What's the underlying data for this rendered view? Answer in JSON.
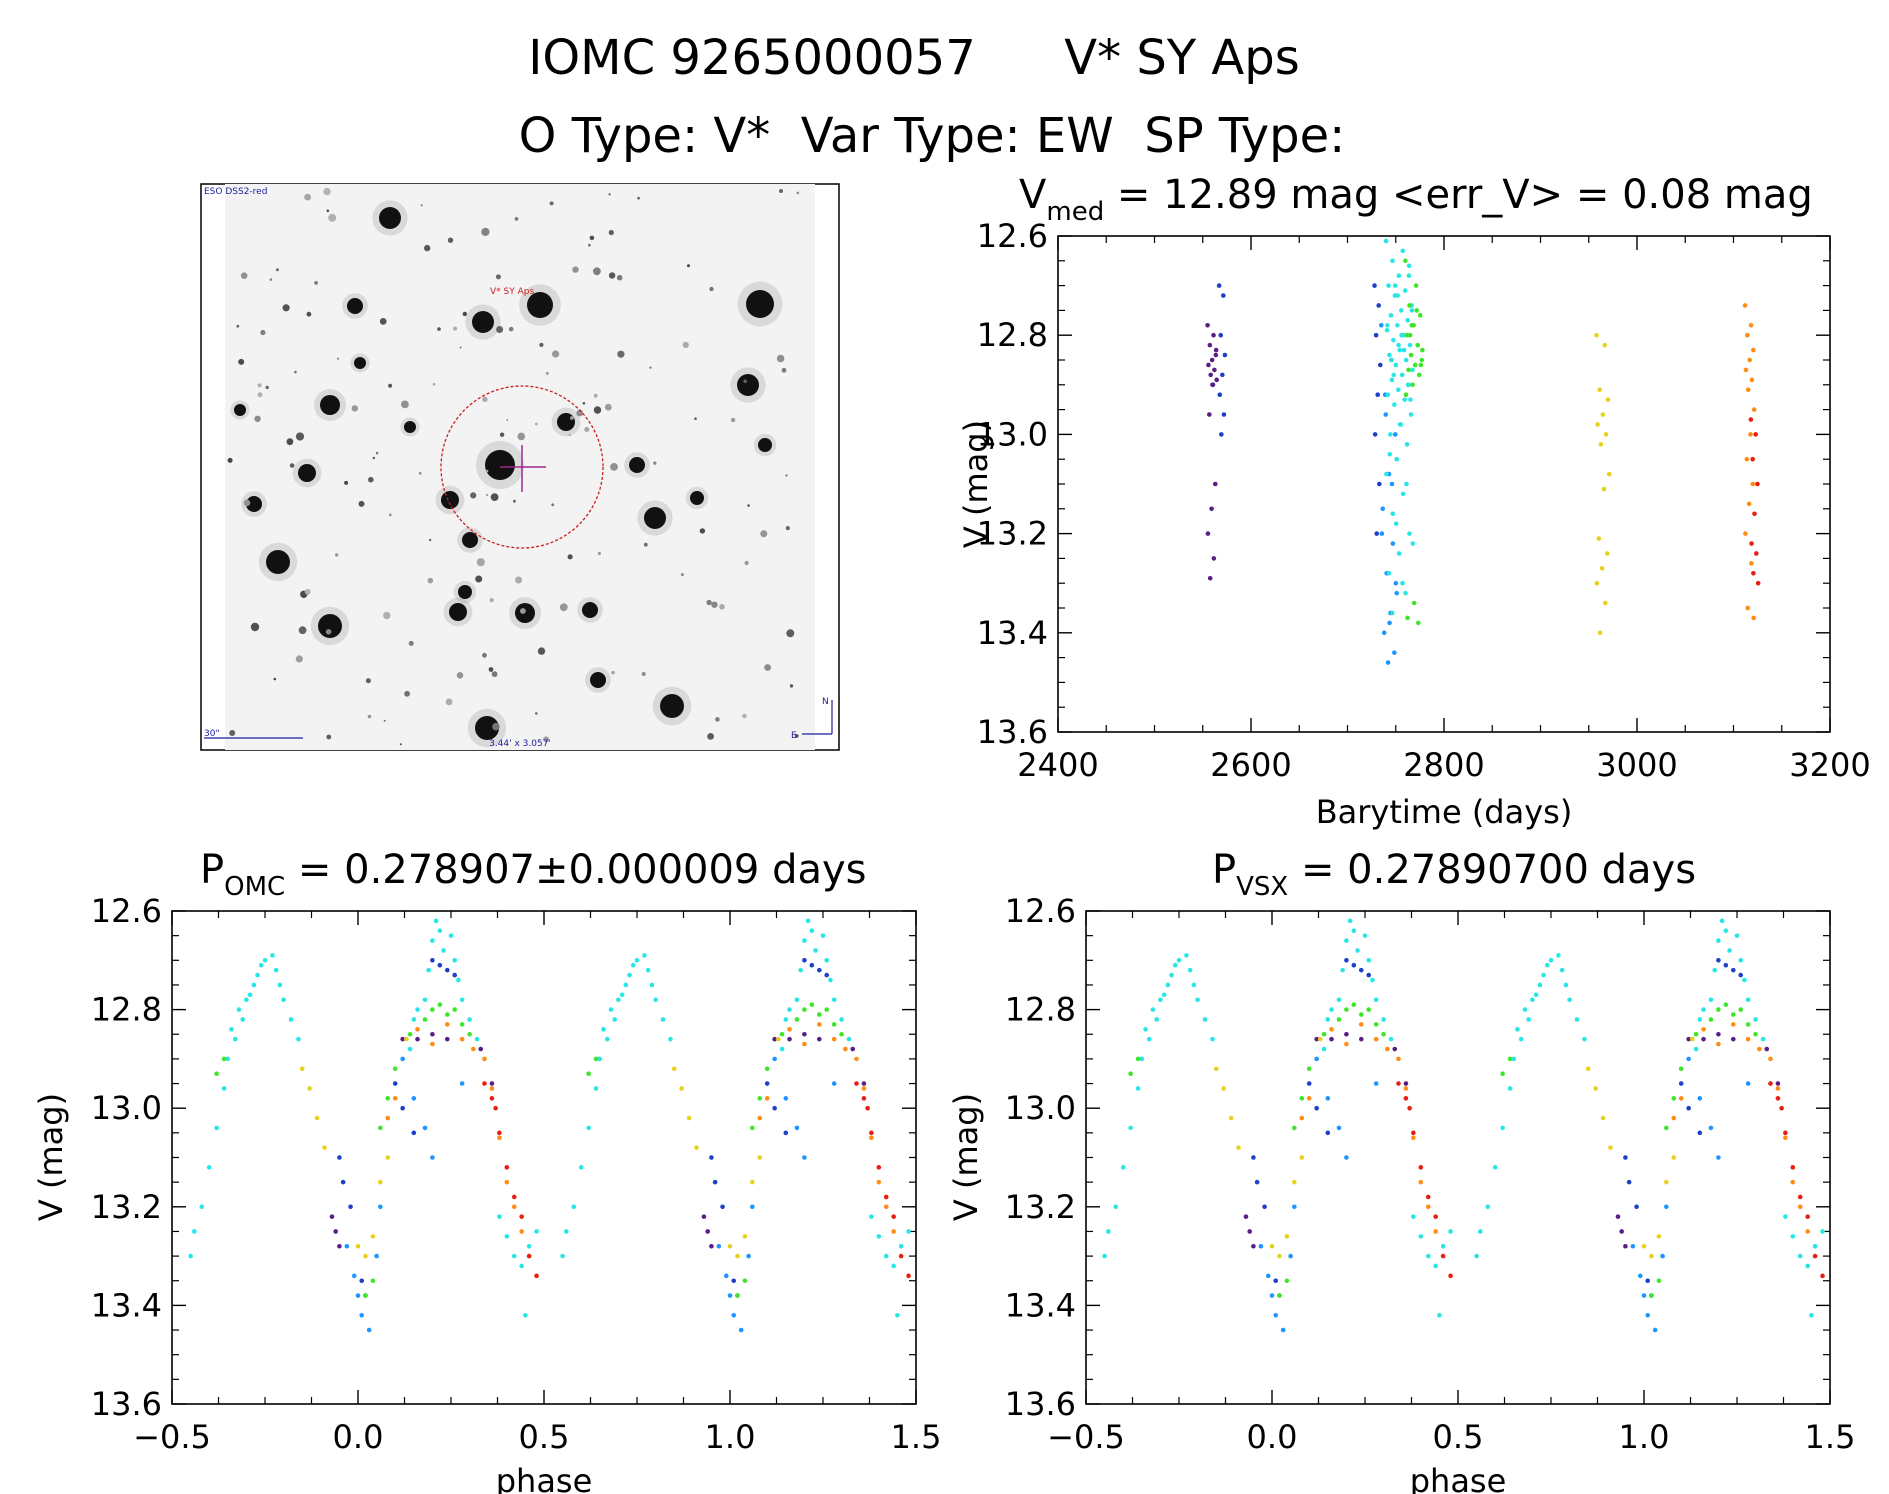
{
  "header": {
    "line1_id": "IOMC 9265000057",
    "line1_name": "V* SY Aps",
    "line2": "O Type: V*  Var Type: EW  SP Type:"
  },
  "finder": {
    "survey_label": "ESO DSS2-red",
    "target_label": "V* SY Aps",
    "scale_label": "30\"",
    "fov_label": "3.44' x 3.057'",
    "compass_n": "N",
    "compass_e": "E"
  },
  "colors": {
    "purple": "#5a1e86",
    "blue": "#1e3fc8",
    "azure": "#1e96ff",
    "cyan": "#28e6e6",
    "green": "#3ee62a",
    "yellow": "#e6d21e",
    "orange": "#ff8c14",
    "red": "#e61e14",
    "circle": "#c81e1e",
    "crosshair": "#a0288c",
    "finder_text": "#1e1ea0"
  },
  "chart_data": [
    {
      "id": "lightcurve",
      "type": "scatter",
      "title_prefix": "V",
      "title_sub": "med",
      "title_rest": " = 12.89 mag <err_V> = 0.08 mag",
      "xlabel": "Barytime (days)",
      "ylabel": "V (mag)",
      "xlim": [
        2400,
        3200
      ],
      "ylim": [
        12.6,
        13.6
      ],
      "y_inverted": true,
      "xticks": [
        2400,
        2600,
        2800,
        3000,
        3200
      ],
      "xtick_labels": [
        "2400",
        "2600",
        "2800",
        "3000",
        "3200"
      ],
      "yticks": [
        12.6,
        12.8,
        13.0,
        13.2,
        13.4,
        13.6
      ],
      "ytick_labels": [
        "12.6",
        "12.8",
        "13.0",
        "13.2",
        "13.4",
        "13.6"
      ],
      "groups": [
        {
          "color": "purple",
          "x_range": [
            2555,
            2565
          ],
          "values": [
            12.78,
            12.8,
            12.82,
            12.84,
            12.85,
            12.86,
            12.87,
            12.88,
            12.89,
            12.9,
            12.96,
            13.1,
            13.15,
            13.2,
            13.25,
            13.29,
            12.83,
            12.9
          ]
        },
        {
          "color": "blue",
          "x_range": [
            2567,
            2574
          ],
          "values": [
            12.7,
            12.72,
            12.8,
            12.84,
            12.88,
            12.92,
            12.96,
            13.0
          ]
        },
        {
          "color": "blue",
          "x_range": [
            2728,
            2735
          ],
          "values": [
            12.7,
            12.74,
            12.8,
            12.86,
            12.92,
            13.0,
            13.1,
            13.2
          ]
        },
        {
          "color": "azure",
          "x_range": [
            2735,
            2752
          ],
          "values": [
            12.78,
            12.85,
            12.92,
            13.0,
            13.08,
            13.15,
            13.22,
            13.28,
            13.32,
            13.36,
            13.4,
            13.44,
            13.46,
            13.2,
            13.1,
            12.96,
            13.3,
            13.38
          ]
        },
        {
          "color": "cyan",
          "x_range": [
            2740,
            2768
          ],
          "values": [
            12.61,
            12.63,
            12.65,
            12.66,
            12.68,
            12.7,
            12.71,
            12.72,
            12.74,
            12.75,
            12.76,
            12.77,
            12.78,
            12.79,
            12.8,
            12.81,
            12.82,
            12.83,
            12.84,
            12.85,
            12.86,
            12.87,
            12.88,
            12.89,
            12.9,
            12.91,
            12.92,
            12.93,
            12.94,
            12.96,
            12.98,
            13.0,
            13.02,
            13.05,
            13.08,
            13.12,
            13.16,
            13.2,
            13.24,
            13.28,
            13.32,
            12.7,
            12.75,
            12.8,
            12.85,
            12.9,
            12.72,
            12.78,
            12.83,
            12.88,
            12.93,
            12.98,
            13.04,
            13.1,
            13.18,
            13.22,
            13.3,
            13.36,
            12.68,
            12.82
          ]
        },
        {
          "color": "green",
          "x_range": [
            2760,
            2778
          ],
          "values": [
            12.65,
            12.7,
            12.74,
            12.76,
            12.78,
            12.8,
            12.82,
            12.84,
            12.85,
            12.86,
            12.87,
            12.88,
            12.9,
            12.92,
            12.75,
            12.8,
            12.86,
            13.34,
            13.37,
            13.38,
            12.78,
            12.83
          ]
        },
        {
          "color": "yellow",
          "x_range": [
            2958,
            2972
          ],
          "values": [
            12.8,
            12.82,
            12.91,
            12.93,
            12.96,
            12.98,
            13.0,
            13.02,
            13.08,
            13.11,
            13.21,
            13.24,
            13.27,
            13.3,
            13.34,
            13.4
          ]
        },
        {
          "color": "orange",
          "x_range": [
            3112,
            3122
          ],
          "values": [
            12.74,
            12.78,
            12.8,
            12.83,
            12.85,
            12.87,
            12.89,
            12.91,
            12.95,
            13.0,
            13.05,
            13.1,
            13.14,
            13.2,
            13.26,
            13.35,
            13.37
          ]
        },
        {
          "color": "red",
          "x_range": [
            3118,
            3126
          ],
          "values": [
            12.97,
            13.0,
            13.05,
            13.1,
            13.16,
            13.22,
            13.24,
            13.28,
            13.3
          ]
        }
      ]
    },
    {
      "id": "phase_omc",
      "type": "scatter",
      "title_prefix": "P",
      "title_sub": "OMC",
      "title_rest": " = 0.278907±0.000009 days",
      "period_days": 0.278907,
      "period_err_days": 9e-06,
      "xlabel": "phase",
      "ylabel": "V (mag)",
      "xlim": [
        -0.5,
        1.5
      ],
      "ylim": [
        12.6,
        13.6
      ],
      "y_inverted": true,
      "xticks": [
        -0.5,
        0.0,
        0.5,
        1.0,
        1.5
      ],
      "xtick_labels": [
        "−0.5",
        "0.0",
        "0.5",
        "1.0",
        "1.5"
      ],
      "yticks": [
        12.6,
        12.8,
        13.0,
        13.2,
        13.4,
        13.6
      ],
      "ytick_labels": [
        "12.6",
        "12.8",
        "13.0",
        "13.2",
        "13.4",
        "13.6"
      ],
      "phase_points": {
        "purple": [
          [
            0.12,
            12.86
          ],
          [
            0.16,
            12.86
          ],
          [
            0.2,
            12.85
          ],
          [
            0.24,
            12.86
          ],
          [
            0.33,
            12.88
          ],
          [
            0.36,
            12.95
          ],
          [
            -0.07,
            13.22
          ],
          [
            -0.06,
            13.25
          ],
          [
            -0.05,
            13.28
          ]
        ],
        "blue": [
          [
            0.2,
            12.7
          ],
          [
            0.24,
            12.72
          ],
          [
            0.26,
            12.73
          ],
          [
            0.22,
            12.71
          ],
          [
            0.1,
            12.95
          ],
          [
            0.12,
            13.0
          ],
          [
            0.15,
            13.05
          ],
          [
            -0.05,
            13.1
          ],
          [
            -0.04,
            13.15
          ],
          [
            -0.02,
            13.2
          ],
          [
            0.01,
            13.35
          ],
          [
            0.02,
            13.38
          ]
        ],
        "azure": [
          [
            0.12,
            12.9
          ],
          [
            0.15,
            12.98
          ],
          [
            0.18,
            13.04
          ],
          [
            0.28,
            12.95
          ],
          [
            -0.03,
            13.28
          ],
          [
            -0.01,
            13.34
          ],
          [
            0.0,
            13.38
          ],
          [
            0.01,
            13.42
          ],
          [
            0.03,
            13.45
          ],
          [
            0.05,
            13.3
          ],
          [
            0.06,
            13.2
          ],
          [
            0.2,
            13.1
          ]
        ],
        "cyan": [
          [
            -0.45,
            13.3
          ],
          [
            -0.44,
            13.25
          ],
          [
            -0.42,
            13.2
          ],
          [
            -0.4,
            13.12
          ],
          [
            -0.38,
            13.04
          ],
          [
            -0.36,
            12.96
          ],
          [
            -0.35,
            12.9
          ],
          [
            -0.33,
            12.86
          ],
          [
            -0.31,
            12.82
          ],
          [
            -0.3,
            12.78
          ],
          [
            -0.28,
            12.75
          ],
          [
            -0.27,
            12.73
          ],
          [
            -0.26,
            12.71
          ],
          [
            -0.25,
            12.7
          ],
          [
            -0.23,
            12.69
          ],
          [
            -0.22,
            12.72
          ],
          [
            -0.21,
            12.75
          ],
          [
            -0.2,
            12.78
          ],
          [
            -0.18,
            12.82
          ],
          [
            -0.16,
            12.86
          ],
          [
            -0.34,
            12.84
          ],
          [
            -0.32,
            12.8
          ],
          [
            -0.29,
            12.77
          ],
          [
            0.18,
            12.78
          ],
          [
            0.19,
            12.72
          ],
          [
            0.2,
            12.66
          ],
          [
            0.21,
            12.62
          ],
          [
            0.22,
            12.64
          ],
          [
            0.23,
            12.68
          ],
          [
            0.25,
            12.65
          ],
          [
            0.26,
            12.7
          ],
          [
            0.27,
            12.74
          ],
          [
            0.28,
            12.78
          ],
          [
            0.3,
            12.82
          ],
          [
            0.32,
            12.86
          ],
          [
            0.15,
            12.82
          ],
          [
            0.16,
            12.8
          ],
          [
            0.14,
            12.88
          ],
          [
            0.38,
            13.22
          ],
          [
            0.4,
            13.26
          ],
          [
            0.42,
            13.3
          ],
          [
            0.44,
            13.32
          ],
          [
            0.46,
            13.28
          ],
          [
            0.48,
            13.25
          ],
          [
            0.45,
            13.42
          ]
        ],
        "green": [
          [
            0.14,
            12.85
          ],
          [
            0.18,
            12.82
          ],
          [
            0.2,
            12.8
          ],
          [
            0.22,
            12.79
          ],
          [
            0.24,
            12.81
          ],
          [
            0.26,
            12.8
          ],
          [
            0.28,
            12.83
          ],
          [
            0.3,
            12.85
          ],
          [
            0.1,
            12.92
          ],
          [
            0.08,
            12.98
          ],
          [
            0.06,
            13.04
          ],
          [
            -0.38,
            12.93
          ],
          [
            -0.36,
            12.9
          ],
          [
            0.02,
            13.38
          ],
          [
            0.04,
            13.35
          ]
        ],
        "yellow": [
          [
            -0.15,
            12.92
          ],
          [
            -0.13,
            12.96
          ],
          [
            -0.11,
            13.02
          ],
          [
            -0.09,
            13.08
          ],
          [
            0.0,
            13.28
          ],
          [
            0.02,
            13.3
          ],
          [
            0.04,
            13.26
          ],
          [
            0.06,
            13.15
          ],
          [
            0.08,
            13.1
          ],
          [
            0.13,
            12.86
          ]
        ],
        "orange": [
          [
            0.16,
            12.84
          ],
          [
            0.2,
            12.87
          ],
          [
            0.24,
            12.83
          ],
          [
            0.28,
            12.86
          ],
          [
            0.31,
            12.88
          ],
          [
            0.34,
            12.9
          ],
          [
            0.36,
            12.96
          ],
          [
            0.38,
            13.06
          ],
          [
            0.4,
            13.15
          ],
          [
            0.42,
            13.2
          ],
          [
            0.44,
            13.25
          ],
          [
            0.1,
            12.98
          ],
          [
            0.08,
            13.02
          ]
        ],
        "red": [
          [
            0.34,
            12.95
          ],
          [
            0.36,
            12.98
          ],
          [
            0.37,
            13.0
          ],
          [
            0.38,
            13.05
          ],
          [
            0.4,
            13.12
          ],
          [
            0.42,
            13.18
          ],
          [
            0.44,
            13.22
          ],
          [
            0.46,
            13.3
          ],
          [
            0.48,
            13.34
          ]
        ]
      }
    },
    {
      "id": "phase_vsx",
      "type": "scatter",
      "title_prefix": "P",
      "title_sub": "VSX",
      "title_rest": " = 0.27890700 days",
      "period_days": 0.278907,
      "xlabel": "phase",
      "ylabel": "V (mag)",
      "xlim": [
        -0.5,
        1.5
      ],
      "ylim": [
        12.6,
        13.6
      ],
      "y_inverted": true,
      "xticks": [
        -0.5,
        0.0,
        0.5,
        1.0,
        1.5
      ],
      "xtick_labels": [
        "−0.5",
        "0.0",
        "0.5",
        "1.0",
        "1.5"
      ],
      "yticks": [
        12.6,
        12.8,
        13.0,
        13.2,
        13.4,
        13.6
      ],
      "ytick_labels": [
        "12.6",
        "12.8",
        "13.0",
        "13.2",
        "13.4",
        "13.6"
      ],
      "phase_points_ref": "phase_omc"
    }
  ]
}
